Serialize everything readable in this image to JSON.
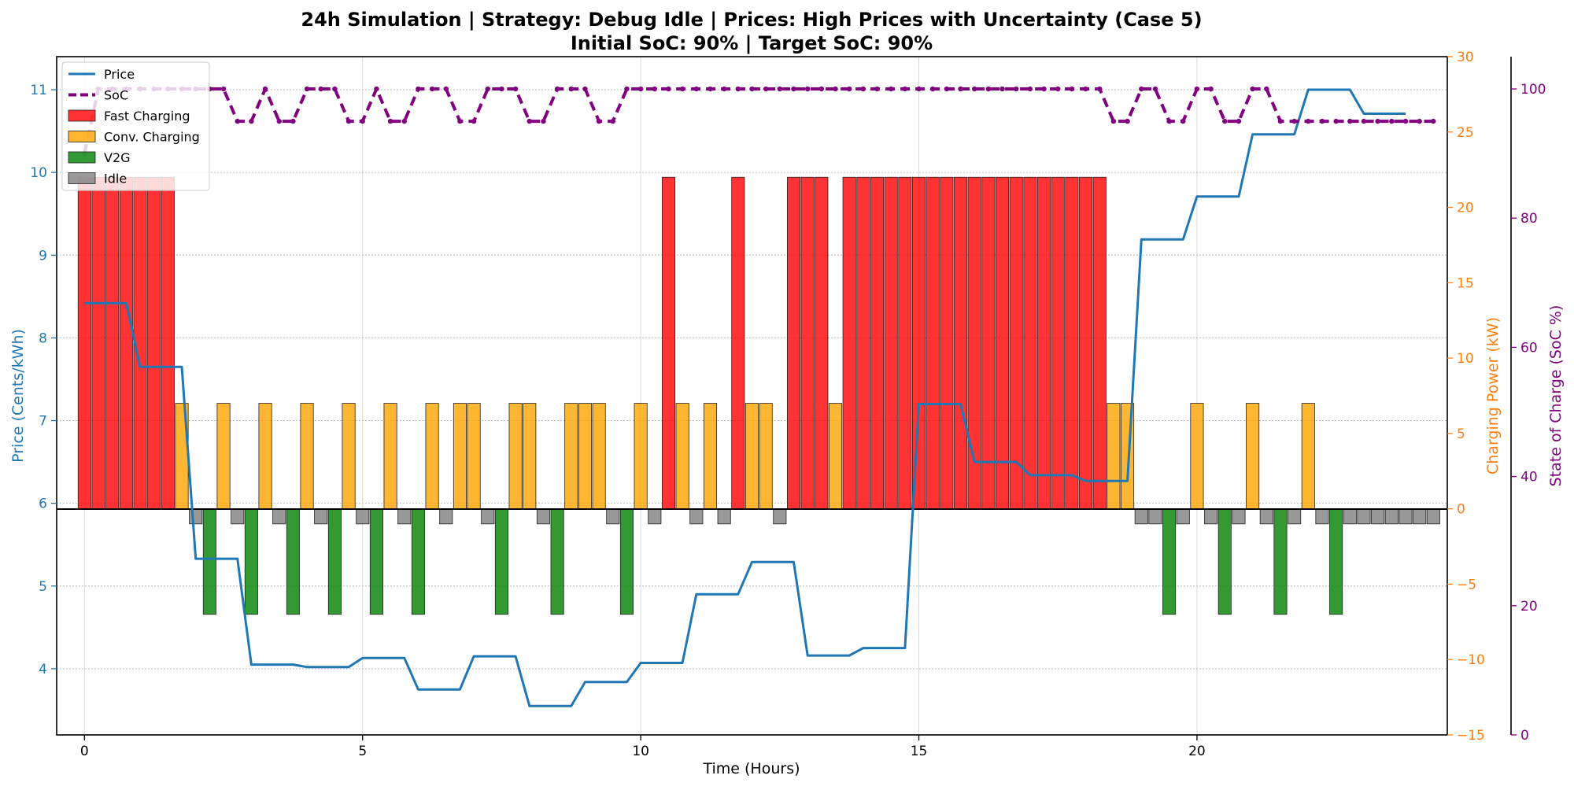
{
  "chart_data": {
    "type": "bar+line",
    "title": "24h Simulation | Strategy: Debug Idle | Prices: High Prices with Uncertainty (Case 5)",
    "subtitle": "Initial SoC: 90% | Target SoC: 90%",
    "xlabel": "Time (Hours)",
    "ylabel_left": "Price (Cents/kWh)",
    "ylabel_right_power": "Charging Power (kW)",
    "ylabel_right_soc": "State of Charge (SoC %)",
    "xlim": [
      -0.5,
      24.5
    ],
    "ylim_price": [
      3.2,
      11.4
    ],
    "ylim_power": [
      -15,
      30
    ],
    "ylim_soc": [
      0,
      105
    ],
    "xticks": [
      0,
      5,
      10,
      15,
      20
    ],
    "yticks_price": [
      4,
      5,
      6,
      7,
      8,
      9,
      10,
      11
    ],
    "yticks_power": [
      -15,
      -10,
      -5,
      0,
      5,
      10,
      15,
      20,
      25,
      30
    ],
    "yticks_soc": [
      0,
      20,
      40,
      60,
      80,
      100
    ],
    "grid": true,
    "legend_position": "top-left",
    "colors": {
      "price": "#1f77b4",
      "soc": "#800080",
      "fast": "#ff0000",
      "conv": "#ffa500",
      "v2g": "#008000",
      "idle": "#808080",
      "power_axis": "#ff7f0e"
    },
    "legend": [
      {
        "label": "Price",
        "kind": "line",
        "color": "#1f77b4"
      },
      {
        "label": "SoC",
        "kind": "dash",
        "color": "#800080"
      },
      {
        "label": "Fast Charging",
        "kind": "patch",
        "color": "#ff0000"
      },
      {
        "label": "Conv. Charging",
        "kind": "patch",
        "color": "#ffa500"
      },
      {
        "label": "V2G",
        "kind": "patch",
        "color": "#008000"
      },
      {
        "label": "Idle",
        "kind": "patch",
        "color": "#808080"
      }
    ],
    "interval_hours": 0.25,
    "price_series": [
      {
        "x": 0,
        "y": 8.42
      },
      {
        "x": 0.75,
        "y": 8.42
      },
      {
        "x": 1.0,
        "y": 7.65
      },
      {
        "x": 1.75,
        "y": 7.65
      },
      {
        "x": 2.0,
        "y": 5.33
      },
      {
        "x": 2.75,
        "y": 5.33
      },
      {
        "x": 3.0,
        "y": 4.05
      },
      {
        "x": 3.75,
        "y": 4.05
      },
      {
        "x": 4.0,
        "y": 4.02
      },
      {
        "x": 4.75,
        "y": 4.02
      },
      {
        "x": 5.0,
        "y": 4.13
      },
      {
        "x": 5.75,
        "y": 4.13
      },
      {
        "x": 6.0,
        "y": 3.75
      },
      {
        "x": 6.75,
        "y": 3.75
      },
      {
        "x": 7.0,
        "y": 4.15
      },
      {
        "x": 7.75,
        "y": 4.15
      },
      {
        "x": 8.0,
        "y": 3.55
      },
      {
        "x": 8.75,
        "y": 3.55
      },
      {
        "x": 9.0,
        "y": 3.84
      },
      {
        "x": 9.75,
        "y": 3.84
      },
      {
        "x": 10.0,
        "y": 4.07
      },
      {
        "x": 10.75,
        "y": 4.07
      },
      {
        "x": 11.0,
        "y": 4.9
      },
      {
        "x": 11.75,
        "y": 4.9
      },
      {
        "x": 12.0,
        "y": 5.29
      },
      {
        "x": 12.75,
        "y": 5.29
      },
      {
        "x": 13.0,
        "y": 4.16
      },
      {
        "x": 13.75,
        "y": 4.16
      },
      {
        "x": 14.0,
        "y": 4.25
      },
      {
        "x": 14.75,
        "y": 4.25
      },
      {
        "x": 15.0,
        "y": 7.2
      },
      {
        "x": 15.75,
        "y": 7.2
      },
      {
        "x": 16.0,
        "y": 6.5
      },
      {
        "x": 16.75,
        "y": 6.5
      },
      {
        "x": 17.0,
        "y": 6.34
      },
      {
        "x": 17.75,
        "y": 6.34
      },
      {
        "x": 18.0,
        "y": 6.27
      },
      {
        "x": 18.75,
        "y": 6.27
      },
      {
        "x": 19.0,
        "y": 9.19
      },
      {
        "x": 19.75,
        "y": 9.19
      },
      {
        "x": 20.0,
        "y": 9.71
      },
      {
        "x": 20.75,
        "y": 9.71
      },
      {
        "x": 21.0,
        "y": 10.46
      },
      {
        "x": 21.75,
        "y": 10.46
      },
      {
        "x": 22.0,
        "y": 11.0
      },
      {
        "x": 22.75,
        "y": 11.0
      },
      {
        "x": 23.0,
        "y": 10.71
      },
      {
        "x": 23.75,
        "y": 10.71
      }
    ],
    "soc_series": [
      90,
      100,
      100,
      100,
      100,
      100,
      100,
      100,
      100,
      100,
      100,
      95,
      95,
      100,
      95,
      95,
      100,
      100,
      100,
      95,
      95,
      100,
      95,
      95,
      100,
      100,
      100,
      95,
      95,
      100,
      100,
      100,
      95,
      95,
      100,
      100,
      100,
      95,
      95,
      100,
      100,
      100,
      100,
      100,
      100,
      100,
      100,
      100,
      100,
      100,
      100,
      100,
      100,
      100,
      100,
      100,
      100,
      100,
      100,
      100,
      100,
      100,
      100,
      100,
      100,
      100,
      100,
      100,
      100,
      100,
      100,
      100,
      100,
      100,
      95,
      95,
      100,
      100,
      95,
      95,
      100,
      100,
      95,
      95,
      100,
      100,
      95,
      95,
      95,
      95,
      95,
      95,
      95,
      95,
      95,
      95,
      95,
      95
    ],
    "actions": [
      "F",
      "F",
      "F",
      "F",
      "F",
      "F",
      "F",
      "C",
      "I",
      "V",
      "C",
      "I",
      "V",
      "C",
      "I",
      "V",
      "C",
      "I",
      "V",
      "C",
      "I",
      "V",
      "C",
      "I",
      "V",
      "C",
      "I",
      "C",
      "C",
      "I",
      "V",
      "C",
      "C",
      "I",
      "V",
      "C",
      "C",
      "C",
      "I",
      "V",
      "C",
      "I",
      "F",
      "C",
      "I",
      "C",
      "I",
      "F",
      "C",
      "C",
      "I",
      "F",
      "F",
      "F",
      "C",
      "F",
      "F",
      "F",
      "F",
      "F",
      "F",
      "F",
      "F",
      "F",
      "F",
      "F",
      "F",
      "F",
      "F",
      "F",
      "F",
      "F",
      "F",
      "F",
      "C",
      "C",
      "I",
      "I",
      "V",
      "I",
      "C",
      "I",
      "V",
      "I",
      "C",
      "I",
      "V",
      "I",
      "C",
      "I",
      "V",
      "I",
      "I",
      "I",
      "I",
      "I",
      "I",
      "I"
    ],
    "power_levels": {
      "F": 22,
      "C": 7,
      "V": -7,
      "I": -1
    }
  }
}
